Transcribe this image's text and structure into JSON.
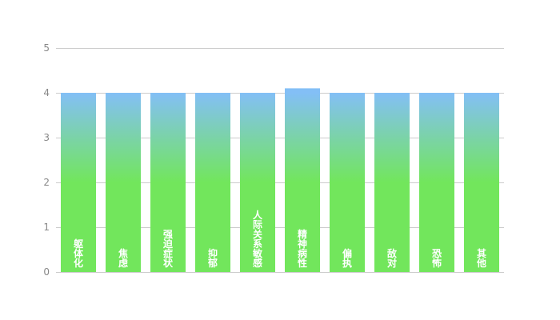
{
  "chart_data": {
    "type": "bar",
    "title": "",
    "xlabel": "",
    "ylabel": "",
    "categories": [
      "躯体化",
      "焦虑",
      "强迫症状",
      "抑郁",
      "人际关系敏感",
      "精神病性",
      "偏执",
      "敌对",
      "恐怖",
      "其他"
    ],
    "values": [
      4,
      4,
      4,
      4,
      4,
      4.1,
      4,
      4,
      4,
      4
    ],
    "ylim": [
      0,
      5
    ],
    "yticks": [
      0,
      1,
      2,
      3,
      4,
      5
    ],
    "grid": true,
    "labels_inside_bars": true,
    "colors": {
      "gradient_top": "#83bff6",
      "gradient_bottom": "#72e65c",
      "grid": "#cccccc",
      "tick_label": "#888888",
      "bar_label": "#ffffff"
    }
  }
}
